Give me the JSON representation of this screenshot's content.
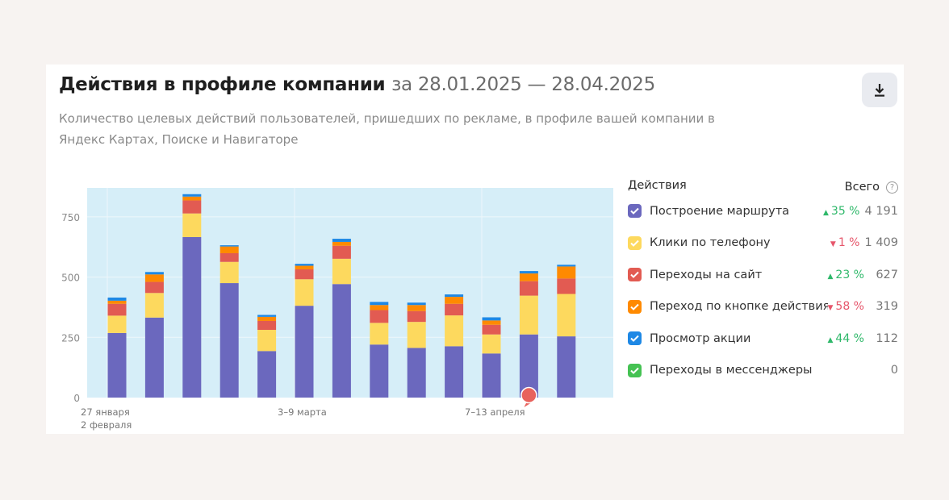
{
  "header": {
    "title": "Действия в профиле компании",
    "period": "за 28.01.2025 — 28.04.2025",
    "subtitle": "Количество целевых действий пользователей, пришедших по рекламе, в профиле вашей компании в Яндекс Картах, Поиске и Навигаторе",
    "download_icon": "download-icon"
  },
  "legend": {
    "heading": "Действия",
    "total_label": "Всего",
    "help_icon": "?",
    "items": [
      {
        "label": "Построение маршрута",
        "color": "#6b68be",
        "direction": "up",
        "arrow": "▲",
        "change": "35 %",
        "total": "4 191"
      },
      {
        "label": "Клики по телефону",
        "color": "#fdd95e",
        "direction": "down",
        "arrow": "▼",
        "change": "1 %",
        "total": "1 409"
      },
      {
        "label": "Переходы на сайт",
        "color": "#e25b52",
        "direction": "up",
        "arrow": "▲",
        "change": "23 %",
        "total": "627"
      },
      {
        "label": "Переход по кнопке действия",
        "color": "#ff8a00",
        "direction": "down",
        "arrow": "▼",
        "change": "58 %",
        "total": "319"
      },
      {
        "label": "Просмотр акции",
        "color": "#1e88e5",
        "direction": "up",
        "arrow": "▲",
        "change": "44 %",
        "total": "112"
      },
      {
        "label": "Переходы в мессенджеры",
        "color": "#45c253",
        "direction": "",
        "arrow": "",
        "change": "",
        "total": "0"
      }
    ]
  },
  "chart_data": {
    "type": "bar",
    "stacked": true,
    "ylim": [
      0,
      870
    ],
    "yticks": [
      "0",
      "250",
      "500",
      "750"
    ],
    "ytick_values": [
      0,
      250,
      500,
      750
    ],
    "grid": true,
    "plot_background": "#d6eef8",
    "x_labels": [
      {
        "index": 0,
        "lines": [
          "27 января",
          "2 февраля"
        ]
      },
      {
        "index": 5,
        "lines": [
          "3–9 марта"
        ]
      },
      {
        "index": 10,
        "lines": [
          "7–13 апреля"
        ]
      }
    ],
    "annotation_marker_index": 11,
    "series": [
      {
        "name": "Построение маршрута",
        "color": "#6b68be",
        "values": [
          268,
          332,
          666,
          475,
          193,
          381,
          471,
          220,
          206,
          213,
          183,
          262,
          254
        ]
      },
      {
        "name": "Клики по телефону",
        "color": "#fdd95e",
        "values": [
          72,
          102,
          98,
          88,
          88,
          110,
          105,
          90,
          108,
          128,
          79,
          161,
          176
        ]
      },
      {
        "name": "Переходы на сайт",
        "color": "#e25b52",
        "values": [
          49,
          46,
          54,
          36,
          37,
          41,
          54,
          53,
          45,
          48,
          40,
          60,
          64
        ]
      },
      {
        "name": "Переход по кнопке действия",
        "color": "#ff8a00",
        "values": [
          13,
          31,
          16,
          28,
          17,
          15,
          16,
          21,
          25,
          29,
          18,
          32,
          50
        ]
      },
      {
        "name": "Просмотр акции",
        "color": "#1e88e5",
        "values": [
          13,
          10,
          10,
          5,
          8,
          8,
          13,
          13,
          10,
          10,
          13,
          10,
          7
        ]
      },
      {
        "name": "Переходы в мессенджеры",
        "color": "#45c253",
        "values": [
          0,
          0,
          0,
          0,
          0,
          0,
          0,
          0,
          0,
          0,
          0,
          0,
          0
        ]
      }
    ]
  }
}
